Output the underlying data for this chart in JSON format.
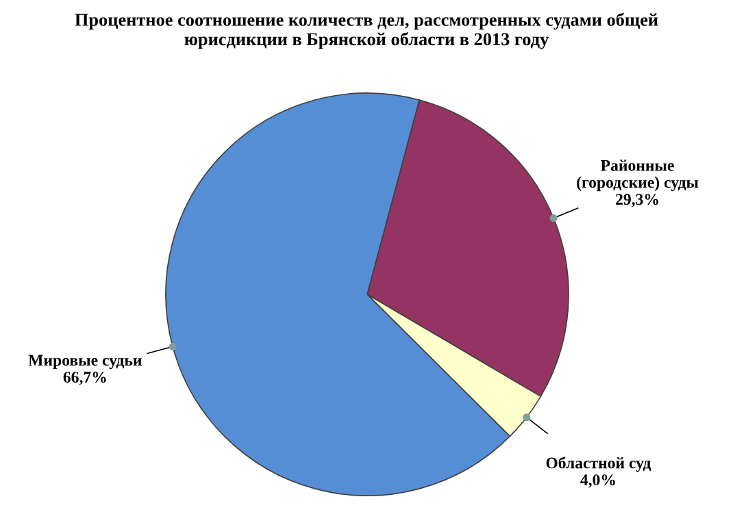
{
  "chart_data": {
    "type": "pie",
    "title": "Процентное соотношение количеств дел, рассмотренных судами общей\nюрисдикции в Брянской области в 2013 году",
    "categories": [
      "Районные\n(городские) суды",
      "Областной суд",
      "Мировые судьи"
    ],
    "values": [
      29.3,
      4.0,
      66.7
    ],
    "value_labels": [
      "29,3%",
      "4,0%",
      "66,7%"
    ],
    "colors": [
      "#953462",
      "#ffffcc",
      "#558ed5"
    ]
  }
}
